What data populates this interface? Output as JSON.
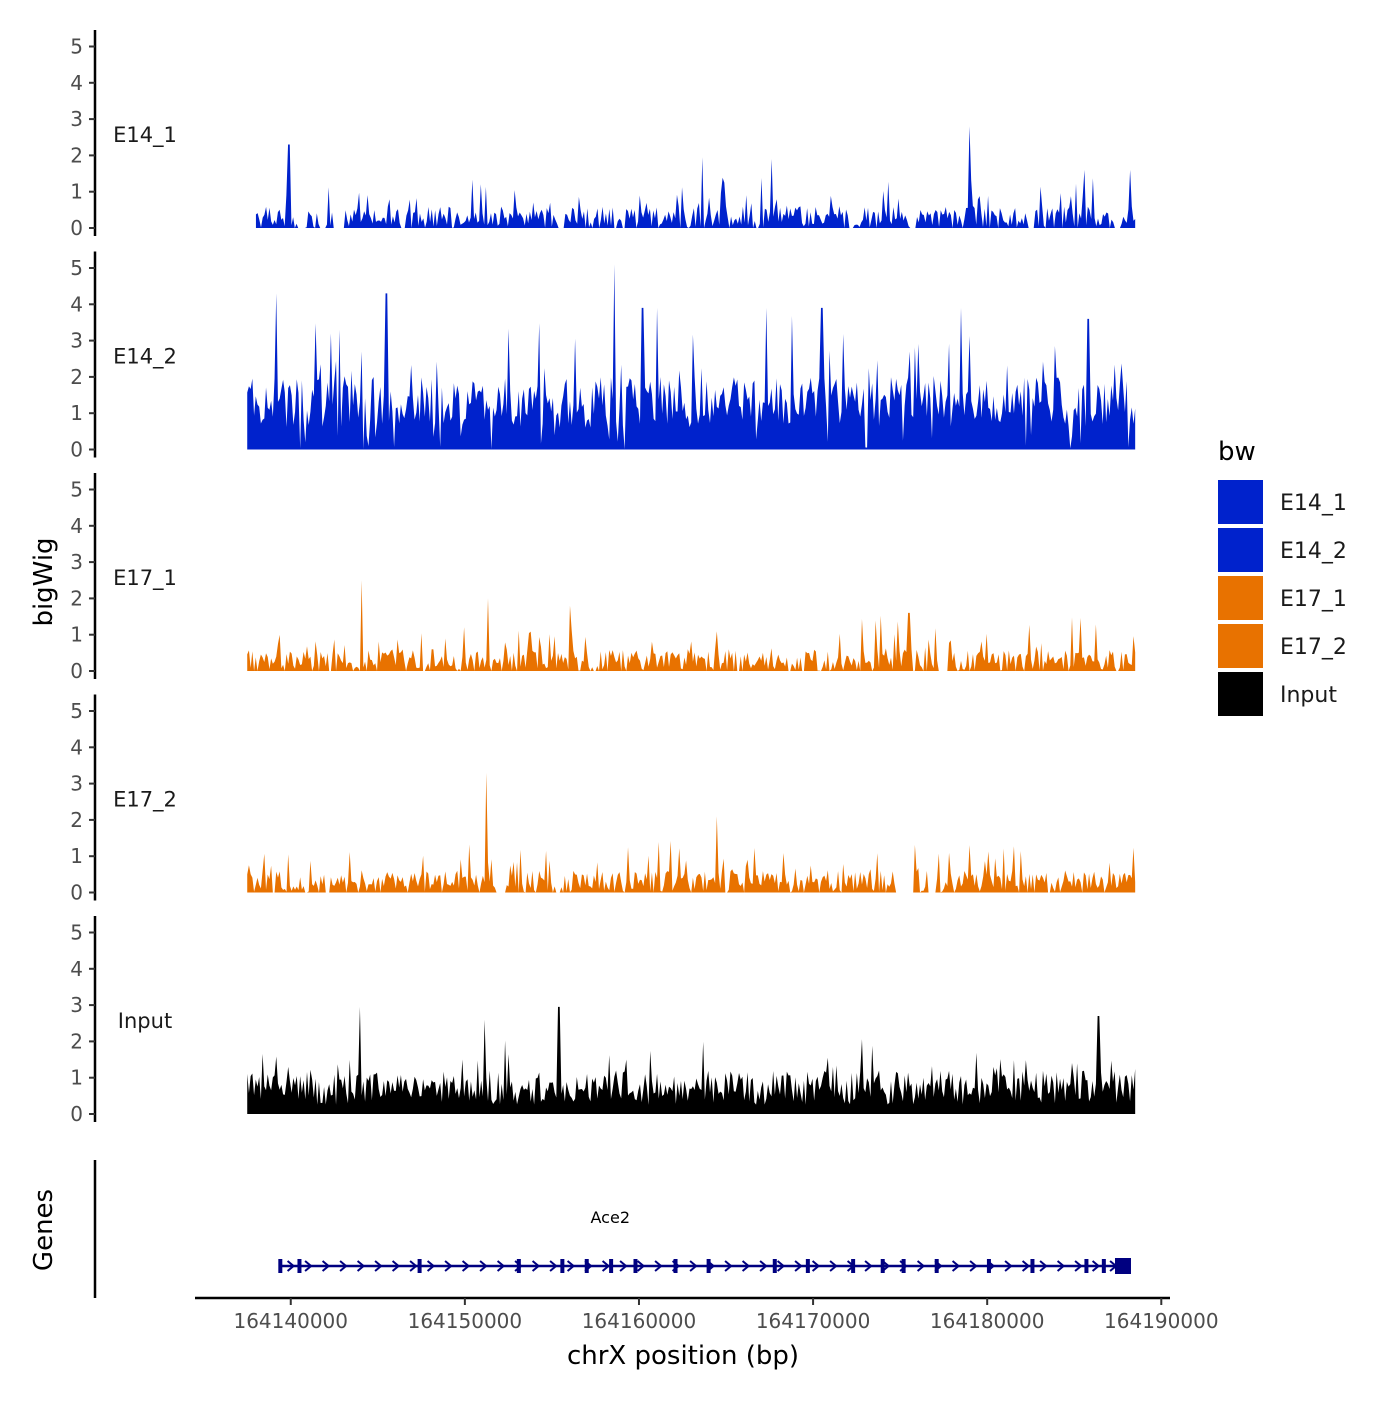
{
  "chart_data": {
    "type": "area",
    "title": "",
    "ylabel": "bigWig",
    "xlabel": "chrX position (bp)",
    "genes_label": "Genes",
    "ylim": [
      0,
      5
    ],
    "yticks": [
      0,
      1,
      2,
      3,
      4,
      5
    ],
    "xlim": [
      164134500,
      164190500
    ],
    "xticks": [
      164140000,
      164150000,
      164160000,
      164170000,
      164180000,
      164190000
    ],
    "xtick_labels": [
      "164140000",
      "164150000",
      "164160000",
      "164170000",
      "164180000",
      "164190000"
    ],
    "legend": {
      "title": "bw",
      "entries": [
        {
          "label": "E14_1",
          "color": "#0022CC"
        },
        {
          "label": "E14_2",
          "color": "#0022CC"
        },
        {
          "label": "E17_1",
          "color": "#E87200"
        },
        {
          "label": "E17_2",
          "color": "#E87200"
        },
        {
          "label": "Input",
          "color": "#000000"
        }
      ]
    },
    "series": [
      {
        "name": "E14_1",
        "color": "#0022CC",
        "x_start": 164138000,
        "x_end": 164188500,
        "max_value": 2.8,
        "peaks": [
          [
            164139900,
            2.3
          ],
          [
            164163600,
            1.95
          ],
          [
            164167600,
            1.9
          ],
          [
            164179000,
            2.8
          ],
          [
            164185600,
            1.6
          ],
          [
            164188200,
            1.6
          ]
        ],
        "gaps": [
          [
            164140400,
            164140900
          ],
          [
            164141700,
            164142000
          ],
          [
            164142400,
            164143100
          ],
          [
            164146300,
            164146600
          ],
          [
            164155300,
            164155700
          ],
          [
            164159000,
            164159200
          ],
          [
            164172000,
            164172300
          ],
          [
            164175500,
            164175800
          ],
          [
            164182300,
            164182700
          ],
          [
            164187300,
            164187700
          ]
        ]
      },
      {
        "name": "E14_2",
        "color": "#0022CC",
        "x_start": 164137500,
        "x_end": 164188500,
        "max_value": 5.1,
        "peaks": [
          [
            164139200,
            4.3
          ],
          [
            164145500,
            4.3
          ],
          [
            164158600,
            5.1
          ],
          [
            164160200,
            3.9
          ],
          [
            164161000,
            3.9
          ],
          [
            164167300,
            3.9
          ],
          [
            164170500,
            3.9
          ],
          [
            164178500,
            3.9
          ],
          [
            164185800,
            3.6
          ]
        ],
        "gaps": []
      },
      {
        "name": "E17_1",
        "color": "#E87200",
        "x_start": 164137500,
        "x_end": 164188500,
        "max_value": 2.5,
        "peaks": [
          [
            164144100,
            2.5
          ],
          [
            164151300,
            2.0
          ],
          [
            164156000,
            1.8
          ],
          [
            164175500,
            1.6
          ]
        ],
        "gaps": [
          [
            164177200,
            164177800
          ]
        ]
      },
      {
        "name": "E17_2",
        "color": "#E87200",
        "x_start": 164137500,
        "x_end": 164188500,
        "max_value": 3.3,
        "peaks": [
          [
            164151200,
            3.3
          ],
          [
            164151800,
            2.0
          ],
          [
            164164500,
            2.1
          ]
        ],
        "gaps": [
          [
            164138900,
            164139100
          ],
          [
            164140800,
            164141000
          ],
          [
            164142000,
            164142200
          ],
          [
            164151800,
            164152300
          ],
          [
            164155200,
            164155500
          ],
          [
            164164900,
            164165100
          ],
          [
            164174700,
            164175800
          ],
          [
            164176600,
            164177000
          ]
        ]
      },
      {
        "name": "Input",
        "color": "#000000",
        "x_start": 164137500,
        "x_end": 164188500,
        "max_value": 2.95,
        "peaks": [
          [
            164144000,
            2.95
          ],
          [
            164151100,
            2.6
          ],
          [
            164155400,
            2.95
          ],
          [
            164186400,
            2.7
          ]
        ],
        "gaps": []
      }
    ],
    "gene": {
      "name": "Ace2",
      "strand": "+",
      "start": 164139300,
      "end": 164188200,
      "exons": [
        164139400,
        164140500,
        164147400,
        164153100,
        164155600,
        164157000,
        164158400,
        164159800,
        164162100,
        164164000,
        164167800,
        164169700,
        164172300,
        164174000,
        164175200,
        164177100,
        164180100,
        164182600,
        164185700,
        164186700,
        164187800
      ]
    }
  }
}
